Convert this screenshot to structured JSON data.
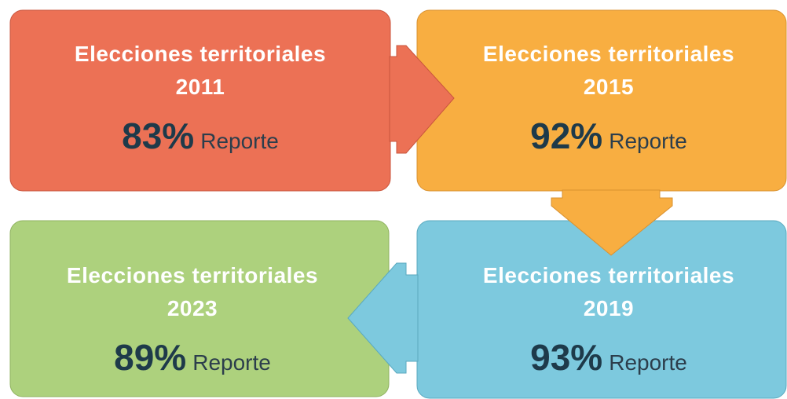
{
  "nodes": [
    {
      "title": "Elecciones territoriales 2011",
      "percent": "83%",
      "label": "Reporte"
    },
    {
      "title": "Elecciones territoriales 2015",
      "percent": "92%",
      "label": "Reporte"
    },
    {
      "title": "Elecciones territoriales 2023",
      "percent": "89%",
      "label": "Reporte"
    },
    {
      "title": "Elecciones territoriales 2019",
      "percent": "93%",
      "label": "Reporte"
    }
  ]
}
